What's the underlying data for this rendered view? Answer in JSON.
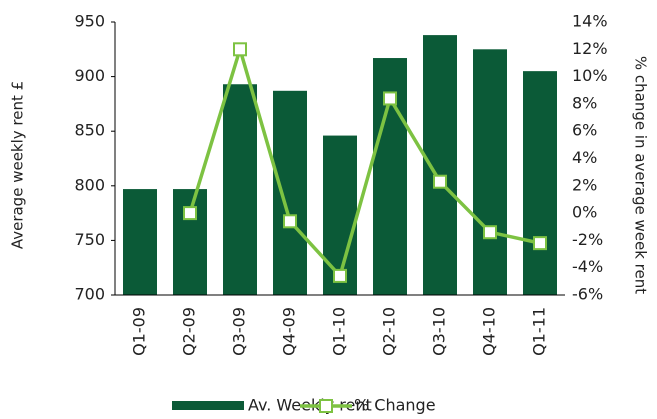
{
  "chart_data": {
    "type": "bar",
    "categories": [
      "Q1-09",
      "Q2-09",
      "Q3-09",
      "Q4-09",
      "Q1-10",
      "Q2-10",
      "Q3-10",
      "Q4-10",
      "Q1-11"
    ],
    "series": [
      {
        "name": "Av. Weekly rent",
        "color": "#0b5a37",
        "type": "bar",
        "values": [
          797,
          797,
          893,
          887,
          846,
          917,
          938,
          925,
          905
        ]
      },
      {
        "name": "% Change",
        "color": "#7dc242",
        "type": "line",
        "axis": "y2",
        "values": [
          null,
          0,
          12,
          -0.6,
          -4.6,
          8.4,
          2.3,
          -1.4,
          -2.2
        ]
      }
    ],
    "ylabel": "Average weekly rent £",
    "y2label": "% change in average week rent",
    "ylim": [
      700,
      950
    ],
    "yticks": [
      700,
      750,
      800,
      850,
      900,
      950
    ],
    "y2lim": [
      -6,
      14
    ],
    "y2ticks": [
      {
        "value": -6,
        "label": "-6%"
      },
      {
        "value": -4,
        "label": "-4%"
      },
      {
        "value": -2,
        "label": "-2%"
      },
      {
        "value": 0,
        "label": "0%"
      },
      {
        "value": 2,
        "label": "2%"
      },
      {
        "value": 4,
        "label": "4%"
      },
      {
        "value": 6,
        "label": "6%"
      },
      {
        "value": 8,
        "label": "8%"
      },
      {
        "value": 10,
        "label": "10%"
      },
      {
        "value": 12,
        "label": "12%"
      },
      {
        "value": 14,
        "label": "14%"
      }
    ],
    "legend": "bottom"
  }
}
